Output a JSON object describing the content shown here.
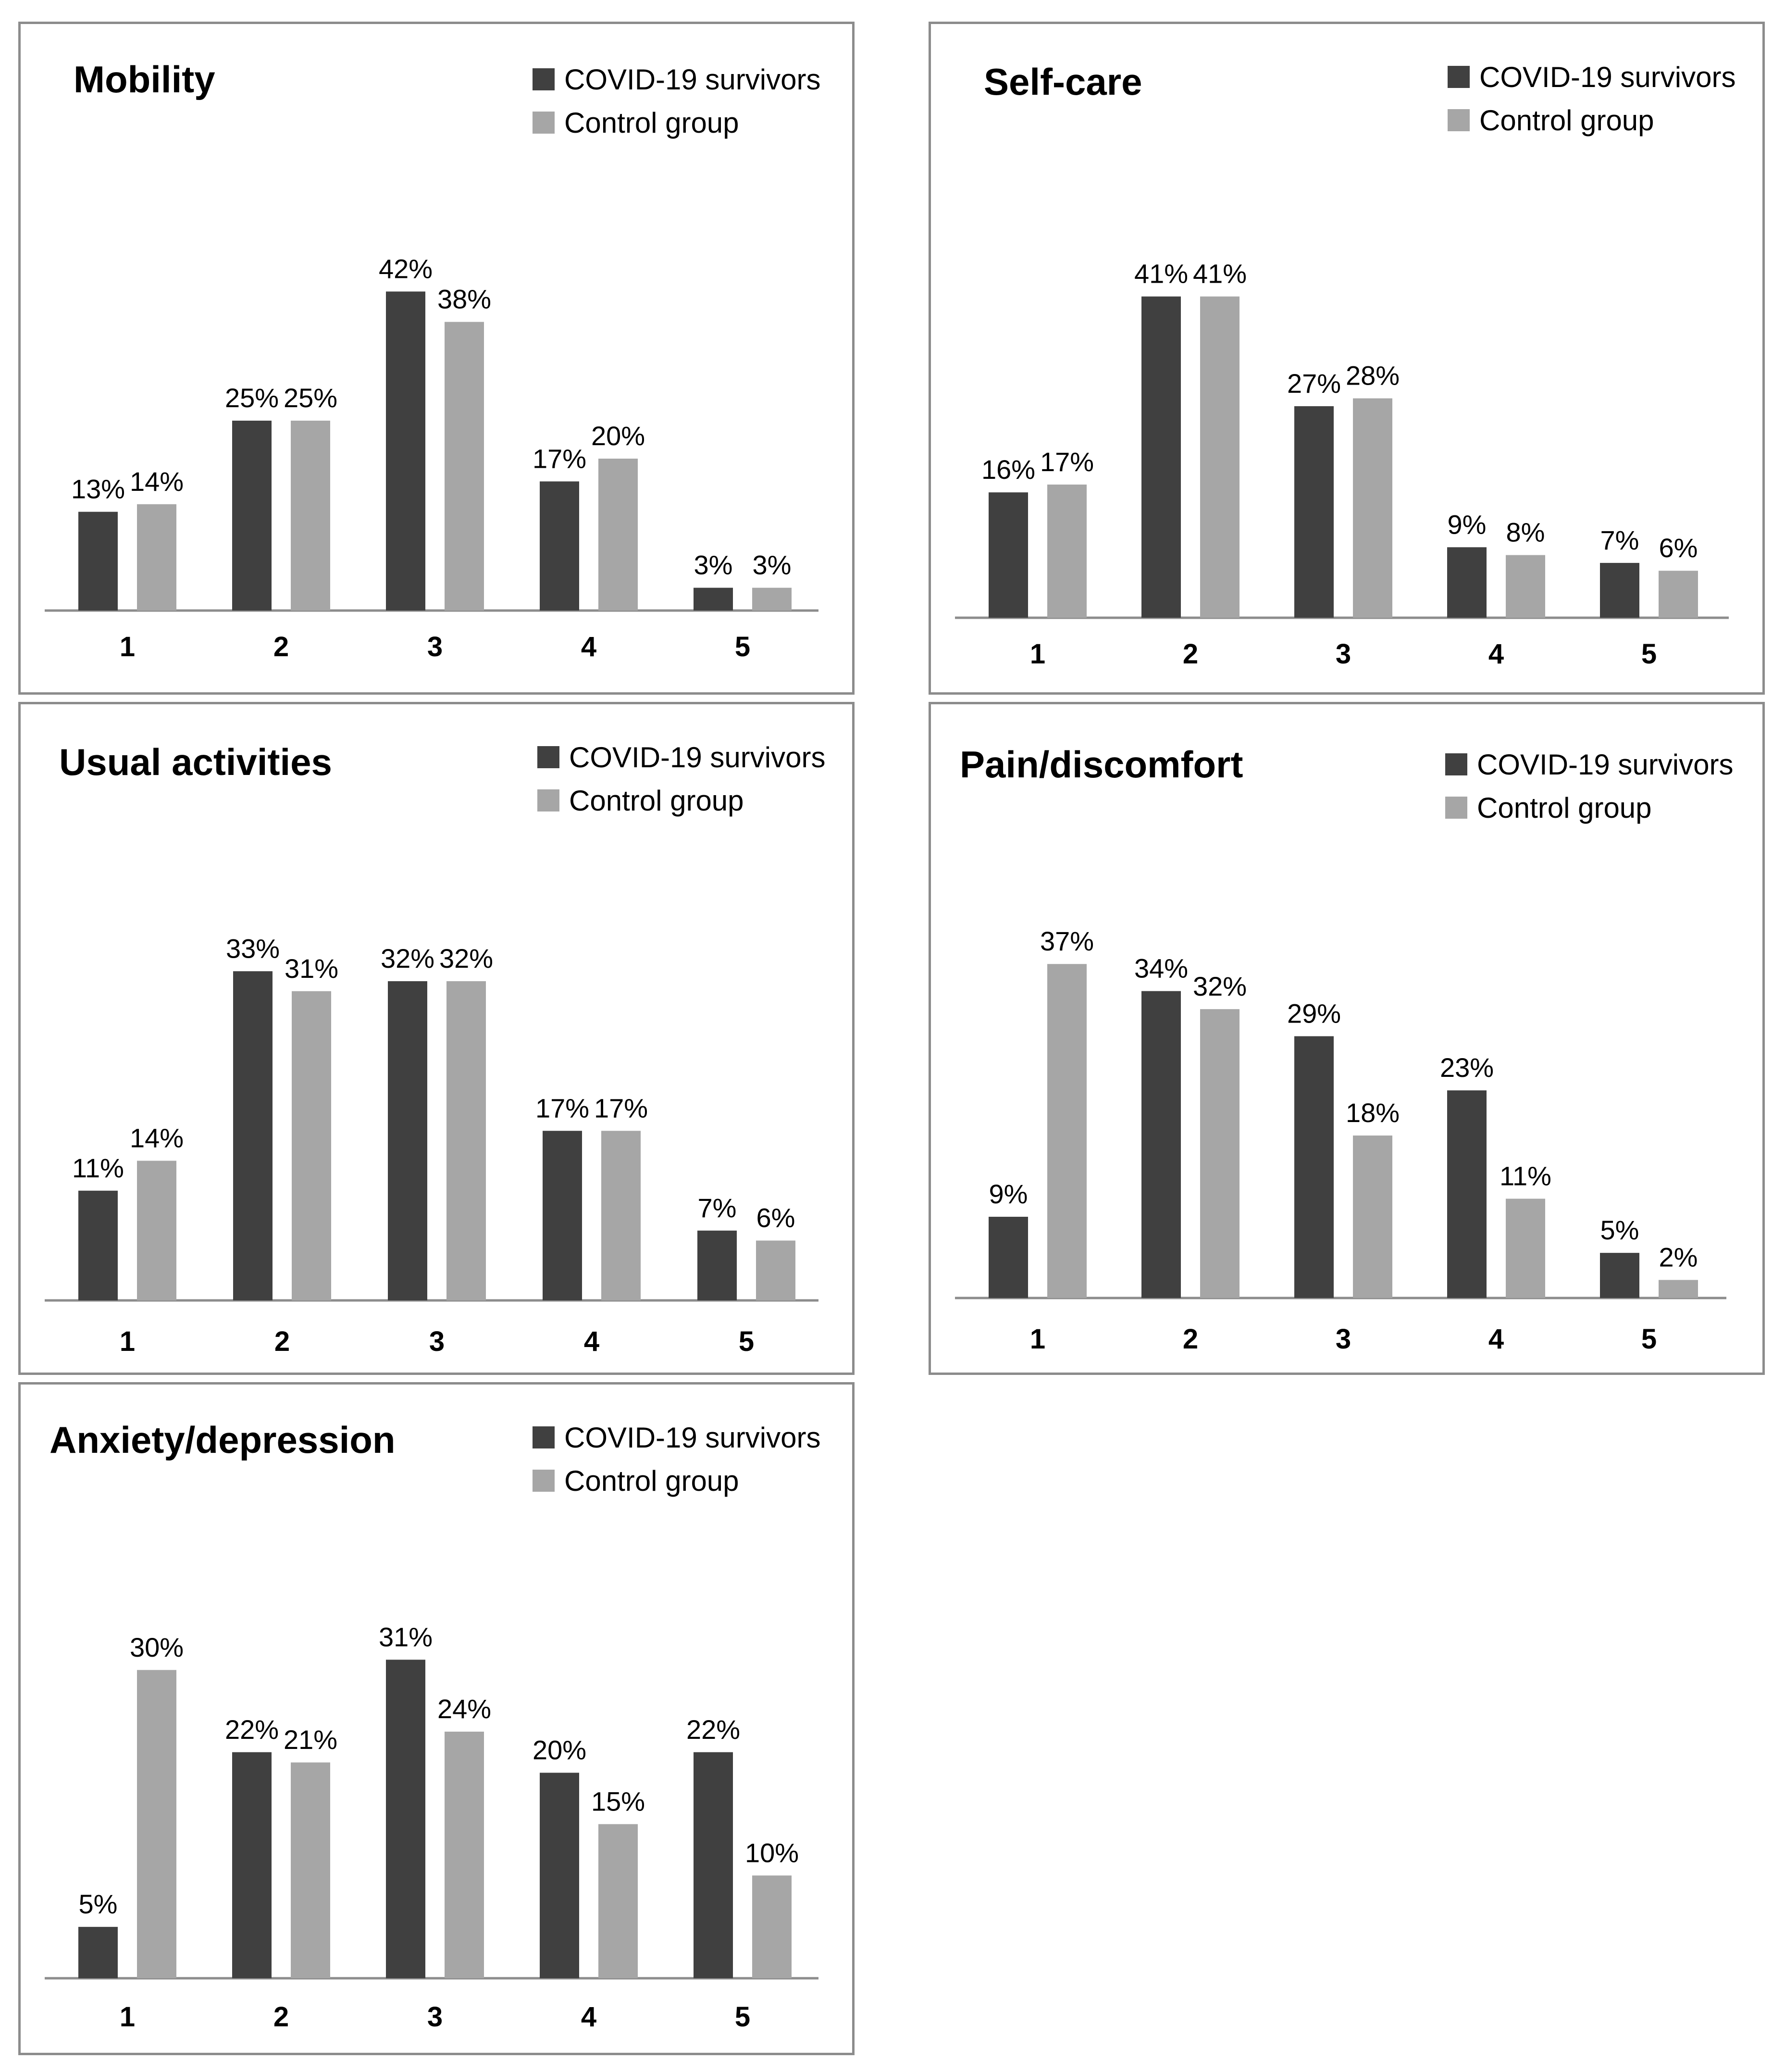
{
  "colors": {
    "covid": "#404040",
    "control": "#a6a6a6",
    "axis": "#8c8c8c"
  },
  "chart_data": [
    {
      "type": "bar",
      "title": "Mobility",
      "categories": [
        "1",
        "2",
        "3",
        "4",
        "5"
      ],
      "series": [
        {
          "name": "COVID-19 survivors",
          "values": [
            13,
            25,
            42,
            17,
            3
          ]
        },
        {
          "name": "Control group",
          "values": [
            14,
            25,
            38,
            20,
            3
          ]
        }
      ],
      "value_suffix": "%",
      "ylim": [
        0,
        50
      ],
      "legend": "top-right"
    },
    {
      "type": "bar",
      "title": "Self-care",
      "categories": [
        "1",
        "2",
        "3",
        "4",
        "5"
      ],
      "series": [
        {
          "name": "COVID-19 survivors",
          "values": [
            16,
            41,
            27,
            9,
            7
          ]
        },
        {
          "name": "Control group",
          "values": [
            17,
            41,
            28,
            8,
            6
          ]
        }
      ],
      "value_suffix": "%",
      "ylim": [
        0,
        50
      ],
      "legend": "top-right"
    },
    {
      "type": "bar",
      "title": "Usual activities",
      "categories": [
        "1",
        "2",
        "3",
        "4",
        "5"
      ],
      "series": [
        {
          "name": "COVID-19 survivors",
          "values": [
            11,
            33,
            32,
            17,
            7
          ]
        },
        {
          "name": "Control group",
          "values": [
            14,
            31,
            32,
            17,
            6
          ]
        }
      ],
      "value_suffix": "%",
      "ylim": [
        0,
        40
      ],
      "legend": "top-right"
    },
    {
      "type": "bar",
      "title": "Pain/discomfort",
      "categories": [
        "1",
        "2",
        "3",
        "4",
        "5"
      ],
      "series": [
        {
          "name": "COVID-19 survivors",
          "values": [
            9,
            34,
            29,
            23,
            5
          ]
        },
        {
          "name": "Control group",
          "values": [
            37,
            32,
            18,
            11,
            2
          ]
        }
      ],
      "value_suffix": "%",
      "ylim": [
        0,
        45
      ],
      "legend": "top-right"
    },
    {
      "type": "bar",
      "title": "Anxiety/depression",
      "categories": [
        "1",
        "2",
        "3",
        "4",
        "5"
      ],
      "series": [
        {
          "name": "COVID-19 survivors",
          "values": [
            5,
            22,
            31,
            20,
            22
          ]
        },
        {
          "name": "Control group",
          "values": [
            30,
            21,
            24,
            15,
            10
          ]
        }
      ],
      "value_suffix": "%",
      "ylim": [
        0,
        40
      ],
      "legend": "top-right"
    }
  ]
}
